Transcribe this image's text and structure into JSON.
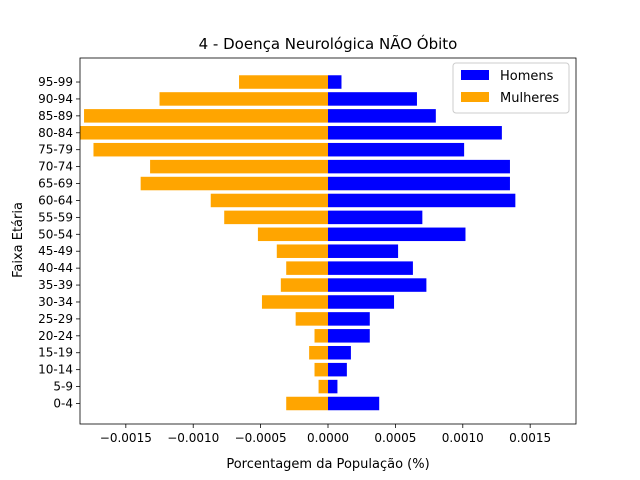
{
  "chart_data": {
    "type": "bar",
    "orientation": "horizontal",
    "title": "4 - Doença Neurológica NÃO Óbito",
    "xlabel": "Porcentagem da População (%)",
    "ylabel": "Faixa Etária",
    "categories": [
      "0-4",
      "5-9",
      "10-14",
      "15-19",
      "20-24",
      "25-29",
      "30-34",
      "35-39",
      "40-44",
      "45-49",
      "50-54",
      "55-59",
      "60-64",
      "65-69",
      "70-74",
      "75-79",
      "80-84",
      "85-89",
      "90-94",
      "95-99"
    ],
    "series": [
      {
        "name": "Homens",
        "color": "#0000ff",
        "values": [
          0.00038,
          7e-05,
          0.00014,
          0.00017,
          0.00031,
          0.00031,
          0.00049,
          0.00073,
          0.00063,
          0.00052,
          0.00102,
          0.0007,
          0.00139,
          0.00135,
          0.00135,
          0.00101,
          0.00129,
          0.0008,
          0.00066,
          0.0001
        ]
      },
      {
        "name": "Mulheres",
        "color": "#ffa500",
        "values": [
          -0.00031,
          -7e-05,
          -0.0001,
          -0.00014,
          -0.0001,
          -0.00024,
          -0.00049,
          -0.00035,
          -0.00031,
          -0.00038,
          -0.00052,
          -0.00077,
          -0.00087,
          -0.00139,
          -0.00132,
          -0.00174,
          -0.00184,
          -0.00181,
          -0.00125,
          -0.00066
        ]
      }
    ],
    "xlim": [
      -0.00184,
      0.00184
    ],
    "xticks": [
      -0.0015,
      -0.001,
      -0.0005,
      0.0,
      0.0005,
      0.001,
      0.0015
    ],
    "xtick_labels": [
      "−0.0015",
      "−0.0010",
      "−0.0005",
      "0.0000",
      "0.0005",
      "0.0010",
      "0.0015"
    ],
    "grid": false,
    "legend_position": "top-right"
  }
}
